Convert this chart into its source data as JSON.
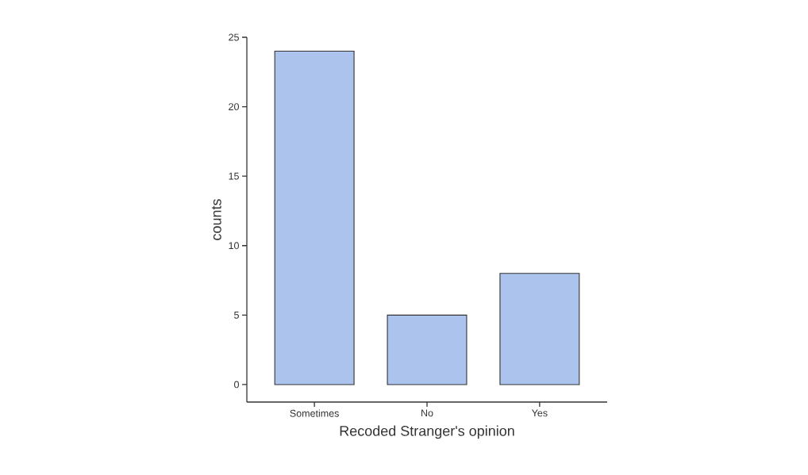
{
  "chart_data": {
    "type": "bar",
    "xlabel": "Recoded Stranger's opinion",
    "ylabel": "counts",
    "categories": [
      "Sometimes",
      "No",
      "Yes"
    ],
    "values": [
      24,
      5,
      8
    ],
    "color": "#abc3ed",
    "ylim": [
      -1.26,
      25
    ],
    "yticks": [
      0,
      5,
      10,
      15,
      20,
      25
    ]
  }
}
